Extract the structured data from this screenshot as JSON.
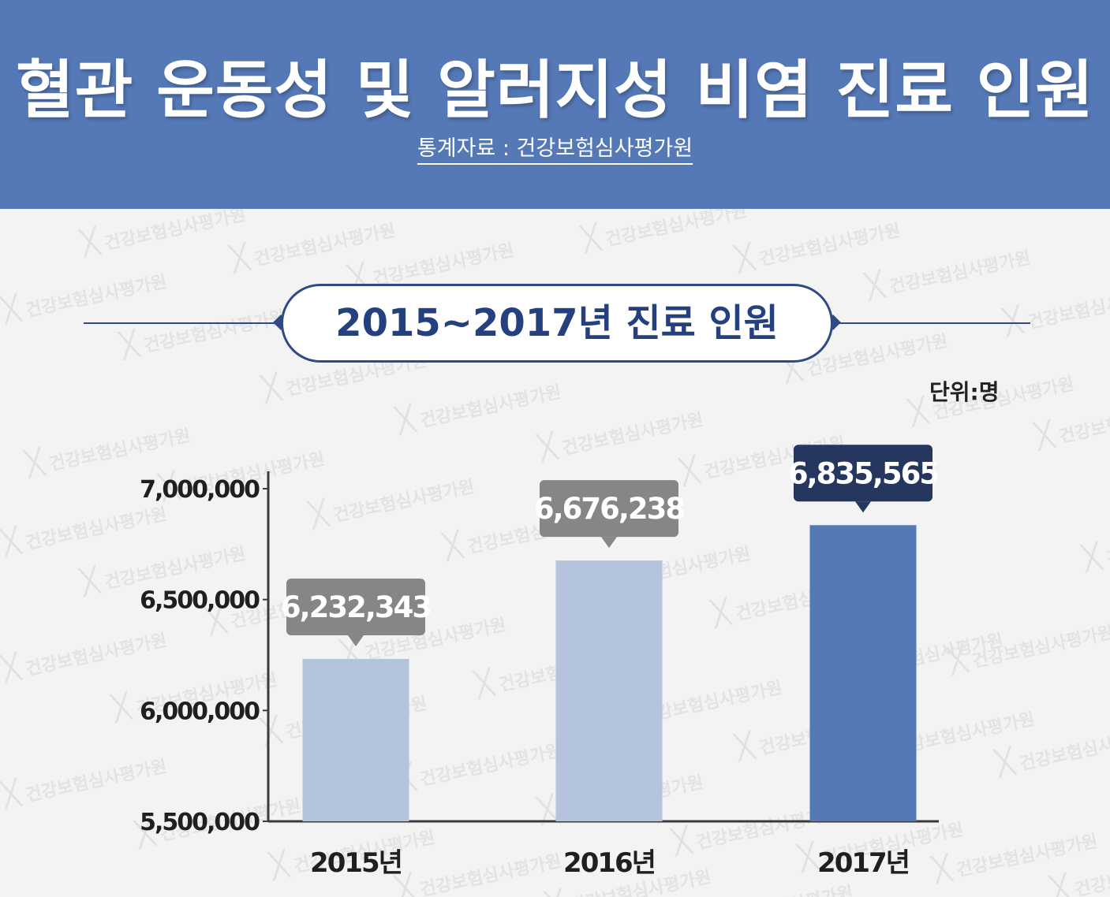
{
  "header": {
    "title": "혈관 운동성 및 알러지성 비염 진료 인원",
    "source": "통계자료 : 건강보험심사평가원"
  },
  "watermark": {
    "text": "건강보험심사평가원",
    "mark": "ᚷ"
  },
  "colors": {
    "header_bg": "#5579b7",
    "bar_light": "#b4c4dd",
    "bar_highlight": "#5579b7",
    "label_gray": "#858687",
    "label_navy": "#26375f",
    "subtitle_text": "#24407e"
  },
  "chart_data": {
    "type": "bar",
    "title": "2015~2017년 진료 인원",
    "unit": "단위:명",
    "categories": [
      "2015년",
      "2016년",
      "2017년"
    ],
    "values": [
      6232343,
      6676238,
      6835565
    ],
    "value_labels": [
      "6,232,343",
      "6,676,238",
      "6,835,565"
    ],
    "highlight_index": 2,
    "ylim": [
      5500000,
      7000000
    ],
    "yticks": [
      5500000,
      6000000,
      6500000,
      7000000
    ],
    "ytick_labels": [
      "5,500,000",
      "6,000,000",
      "6,500,000",
      "7,000,000"
    ],
    "grid": false,
    "legend": "none"
  }
}
